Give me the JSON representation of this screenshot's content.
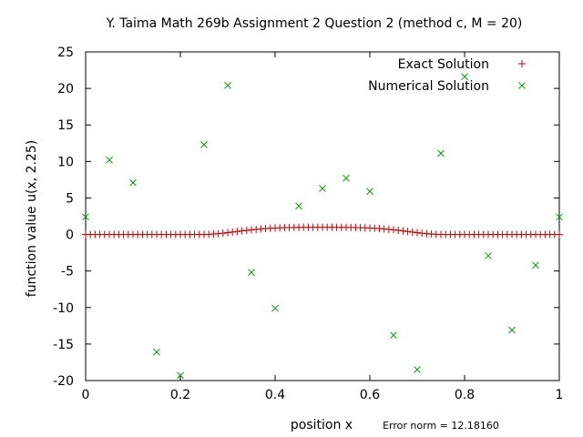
{
  "chart_data": {
    "type": "scatter",
    "title": "Y. Taima Math 269b Assignment 2 Question 2 (method c, M = 20)",
    "xlabel": "position x",
    "ylabel": "function value u(x, 2.25)",
    "xlim": [
      0,
      1
    ],
    "ylim": [
      -20,
      25
    ],
    "xticks": [
      "0",
      "0.2",
      "0.4",
      "0.6",
      "0.8",
      "1"
    ],
    "xtick_values": [
      0,
      0.2,
      0.4,
      0.6,
      0.8,
      1
    ],
    "yticks": [
      "-20",
      "-15",
      "-10",
      "-5",
      "0",
      "5",
      "10",
      "15",
      "20",
      "25"
    ],
    "ytick_values": [
      -20,
      -15,
      -10,
      -5,
      0,
      5,
      10,
      15,
      20,
      25
    ],
    "grid": false,
    "legend_position": "top-right",
    "annotation": "Error norm = 12.18160",
    "series": [
      {
        "name": "Exact Solution",
        "marker": "plus",
        "color": "#c00000",
        "x": [
          0,
          0.01,
          0.02,
          0.03,
          0.04,
          0.05,
          0.06,
          0.07,
          0.08,
          0.09,
          0.1,
          0.11,
          0.12,
          0.13,
          0.14,
          0.15,
          0.16,
          0.17,
          0.18,
          0.19,
          0.2,
          0.21,
          0.22,
          0.23,
          0.24,
          0.25,
          0.26,
          0.27,
          0.28,
          0.29,
          0.3,
          0.31,
          0.32,
          0.33,
          0.34,
          0.35,
          0.36,
          0.37,
          0.38,
          0.39,
          0.4,
          0.41,
          0.42,
          0.43,
          0.44,
          0.45,
          0.46,
          0.47,
          0.48,
          0.49,
          0.5,
          0.51,
          0.52,
          0.53,
          0.54,
          0.55,
          0.56,
          0.57,
          0.58,
          0.59,
          0.6,
          0.61,
          0.62,
          0.63,
          0.64,
          0.65,
          0.66,
          0.67,
          0.68,
          0.69,
          0.7,
          0.71,
          0.72,
          0.73,
          0.74,
          0.75,
          0.76,
          0.77,
          0.78,
          0.79,
          0.8,
          0.81,
          0.82,
          0.83,
          0.84,
          0.85,
          0.86,
          0.87,
          0.88,
          0.89,
          0.9,
          0.91,
          0.92,
          0.93,
          0.94,
          0.95,
          0.96,
          0.97,
          0.98,
          0.99,
          1
        ],
        "y": [
          0,
          0,
          0,
          0,
          0,
          0,
          0,
          0,
          0,
          0,
          0,
          0,
          0,
          0,
          0,
          0,
          0,
          0,
          0,
          0,
          0,
          0,
          0,
          0,
          0,
          0,
          0.02,
          0.06,
          0.11,
          0.17,
          0.25,
          0.33,
          0.41,
          0.49,
          0.57,
          0.64,
          0.7,
          0.76,
          0.81,
          0.85,
          0.88,
          0.91,
          0.93,
          0.95,
          0.96,
          0.97,
          0.98,
          0.98,
          0.99,
          0.99,
          1,
          0.99,
          0.99,
          0.98,
          0.98,
          0.97,
          0.96,
          0.95,
          0.93,
          0.91,
          0.88,
          0.85,
          0.81,
          0.76,
          0.7,
          0.64,
          0.57,
          0.49,
          0.41,
          0.33,
          0.25,
          0.17,
          0.11,
          0.06,
          0.02,
          0,
          0,
          0,
          0,
          0,
          0,
          0,
          0,
          0,
          0,
          0,
          0,
          0,
          0,
          0,
          0,
          0,
          0,
          0,
          0,
          0,
          0,
          0,
          0,
          0,
          0
        ]
      },
      {
        "name": "Numerical Solution",
        "marker": "cross",
        "color": "#00a000",
        "x": [
          0,
          0.05,
          0.1,
          0.15,
          0.2,
          0.25,
          0.3,
          0.35,
          0.4,
          0.45,
          0.5,
          0.55,
          0.6,
          0.65,
          0.7,
          0.75,
          0.8,
          0.85,
          0.9,
          0.95,
          1
        ],
        "y": [
          2.4,
          10.2,
          7.1,
          -16.1,
          -19.3,
          12.3,
          20.4,
          -5.2,
          -10.1,
          3.9,
          6.3,
          7.7,
          5.9,
          -13.8,
          -18.5,
          11.1,
          21.6,
          -2.9,
          -13.1,
          -4.2,
          2.4
        ]
      }
    ]
  }
}
